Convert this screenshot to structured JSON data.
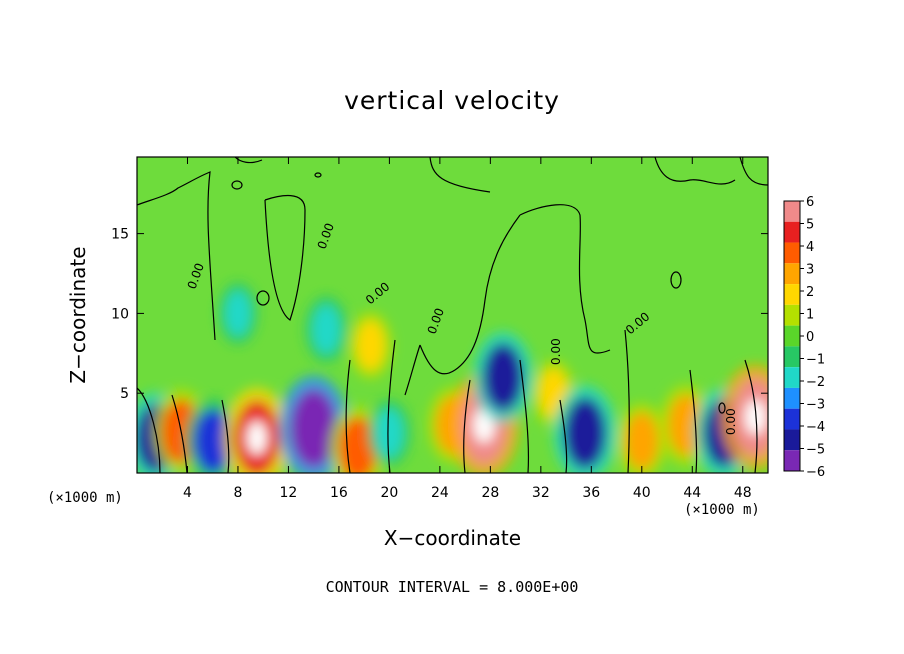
{
  "chart_data": {
    "type": "heatmap",
    "title": "vertical velocity",
    "xlabel": "X−coordinate",
    "ylabel": "Z−coordinate",
    "x_unit_left": "(×1000 m)",
    "x_unit_right": "(×1000 m)",
    "footer": "CONTOUR INTERVAL = 8.000E+00",
    "xlim": [
      0,
      50
    ],
    "ylim": [
      0,
      19.8
    ],
    "x_ticks": [
      4,
      8,
      12,
      16,
      20,
      24,
      28,
      32,
      36,
      40,
      44,
      48
    ],
    "x_tick_labels": [
      "4",
      "8",
      "12",
      "16",
      "20",
      "24",
      "28",
      "32",
      "36",
      "40",
      "44",
      "48"
    ],
    "y_ticks": [
      5,
      10,
      15
    ],
    "y_tick_labels": [
      "5",
      "10",
      "15"
    ],
    "contour_labels": [
      "0.00",
      "0.00",
      "0.00",
      "0.00",
      "0.00",
      "0.00",
      "0.00"
    ],
    "colorbar": {
      "labels": [
        "6",
        "5",
        "4",
        "3",
        "2",
        "1",
        "0",
        "−1",
        "−2",
        "−3",
        "−4",
        "−5",
        "−6"
      ],
      "colors": [
        "#f08a8a",
        "#e82020",
        "#ff5c00",
        "#ffa500",
        "#ffd700",
        "#b4e000",
        "#5ad62a",
        "#27c864",
        "#20d8c8",
        "#1e90ff",
        "#1c32d8",
        "#1a1a9a",
        "#7a28b4"
      ]
    },
    "background_color": "#6edc3c",
    "features": [
      {
        "x": 1.5,
        "z": 2.2,
        "w": -4.5
      },
      {
        "x": 3.5,
        "z": 2.6,
        "w": 4.0
      },
      {
        "x": 6.0,
        "z": 2.0,
        "w": -4.0
      },
      {
        "x": 9.5,
        "z": 2.2,
        "w": 5.5
      },
      {
        "x": 14.0,
        "z": 2.8,
        "w": -6.0
      },
      {
        "x": 17.5,
        "z": 1.5,
        "w": 4.0
      },
      {
        "x": 20.0,
        "z": 2.5,
        "w": -2.0
      },
      {
        "x": 25.0,
        "z": 3.0,
        "w": 3.0
      },
      {
        "x": 27.5,
        "z": 3.0,
        "w": 6.0
      },
      {
        "x": 29.0,
        "z": 6.0,
        "w": -4.5
      },
      {
        "x": 33.0,
        "z": 5.0,
        "w": 2.0
      },
      {
        "x": 35.5,
        "z": 2.5,
        "w": -5.0
      },
      {
        "x": 40.0,
        "z": 2.0,
        "w": 3.0
      },
      {
        "x": 43.5,
        "z": 3.0,
        "w": 3.5
      },
      {
        "x": 46.5,
        "z": 2.5,
        "w": -4.5
      },
      {
        "x": 49.0,
        "z": 3.5,
        "w": 6.0
      },
      {
        "x": 15.0,
        "z": 9.0,
        "w": -2.0
      },
      {
        "x": 18.5,
        "z": 8.0,
        "w": 2.0
      },
      {
        "x": 8.0,
        "z": 10.0,
        "w": -1.5
      }
    ]
  }
}
